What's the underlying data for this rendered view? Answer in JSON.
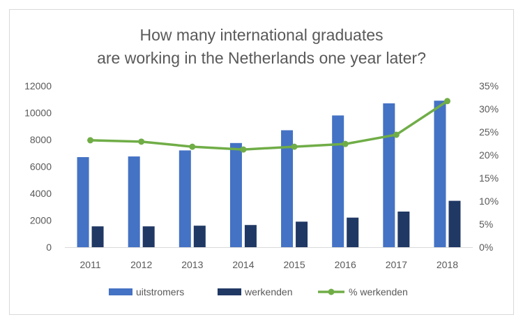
{
  "chart_data": {
    "type": "bar",
    "title_lines": [
      "How many international graduates",
      "are working in the Netherlands one year later?"
    ],
    "categories": [
      "2011",
      "2012",
      "2013",
      "2014",
      "2015",
      "2016",
      "2017",
      "2018"
    ],
    "series": [
      {
        "name": "uitstromers",
        "type": "bar",
        "axis": "left",
        "color": "#4472c4",
        "values": [
          6700,
          6750,
          7200,
          7750,
          8700,
          9800,
          10700,
          10900
        ]
      },
      {
        "name": "werkenden",
        "type": "bar",
        "axis": "left",
        "color": "#203864",
        "values": [
          1550,
          1550,
          1600,
          1650,
          1900,
          2200,
          2650,
          3450
        ]
      },
      {
        "name": "% werkenden",
        "type": "line",
        "axis": "right",
        "color": "#70ad47",
        "values": [
          23.2,
          22.9,
          21.8,
          21.2,
          21.8,
          22.4,
          24.4,
          31.7
        ]
      }
    ],
    "y_left": {
      "min": 0,
      "max": 12000,
      "step": 2000,
      "tick_labels": [
        "0",
        "2000",
        "4000",
        "6000",
        "8000",
        "10000",
        "12000"
      ]
    },
    "y_right": {
      "min": 0,
      "max": 35,
      "step": 5,
      "tick_labels": [
        "0%",
        "5%",
        "10%",
        "15%",
        "20%",
        "25%",
        "30%",
        "35%"
      ]
    },
    "grid": false,
    "legend_position": "bottom"
  }
}
